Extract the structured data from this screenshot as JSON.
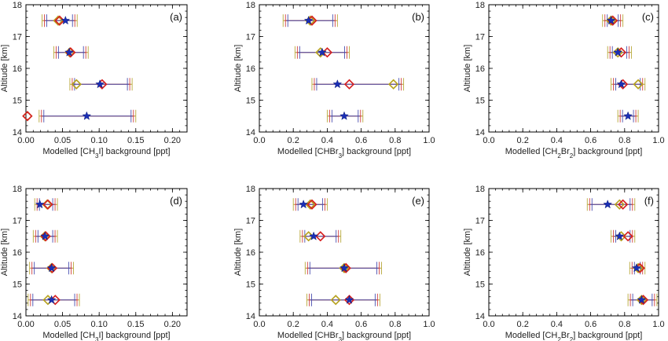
{
  "chart_data": [
    {
      "type": "scatter",
      "panel_label": "(a)",
      "xlabel_prefix": "Modelled [CH",
      "xlabel_sub1": "3",
      "xlabel_mid": "I",
      "xlabel_sub2": "",
      "xlabel_suffix": "] background [ppt]",
      "ylabel": "Altitude  [km]",
      "xlim": [
        0,
        0.22
      ],
      "ylim": [
        14,
        18
      ],
      "xticks": [
        0.0,
        0.05,
        0.1,
        0.15,
        0.2
      ],
      "xtick_labels": [
        "0.00",
        "0.05",
        "0.10",
        "0.15",
        "0.20"
      ],
      "yticks": [
        14,
        15,
        16,
        17,
        18
      ],
      "ytick_labels": [
        "14",
        "15",
        "16",
        "17",
        "18"
      ],
      "points": [
        {
          "y": 17.5,
          "star": 0.054,
          "red": 0.046,
          "olive": 0.044,
          "err": [
            0.022,
            0.07
          ]
        },
        {
          "y": 16.5,
          "star": 0.059,
          "red": 0.061,
          "olive": 0.06,
          "err": [
            0.038,
            0.085
          ]
        },
        {
          "y": 15.5,
          "star": 0.101,
          "red": 0.104,
          "olive": 0.069,
          "err": [
            0.06,
            0.145
          ]
        },
        {
          "y": 14.5,
          "star": 0.083,
          "red": 0.002,
          "olive": 0.002,
          "err": [
            0.018,
            0.15
          ]
        }
      ]
    },
    {
      "type": "scatter",
      "panel_label": "(b)",
      "xlabel_prefix": "Modelled [CHBr",
      "xlabel_sub1": "3",
      "xlabel_mid": "",
      "xlabel_sub2": "",
      "xlabel_suffix": "] background [ppt]",
      "ylabel": "Altitude  [km]",
      "xlim": [
        0,
        1.0
      ],
      "ylim": [
        14,
        18
      ],
      "xticks": [
        0.0,
        0.2,
        0.4,
        0.6,
        0.8,
        1.0
      ],
      "xtick_labels": [
        "0.0",
        "0.2",
        "0.4",
        "0.6",
        "0.8",
        "1.0"
      ],
      "yticks": [
        14,
        15,
        16,
        17,
        18
      ],
      "ytick_labels": [
        "14",
        "15",
        "16",
        "17",
        "18"
      ],
      "points": [
        {
          "y": 17.5,
          "star": 0.29,
          "red": 0.31,
          "olive": 0.3,
          "err": [
            0.14,
            0.46
          ]
        },
        {
          "y": 16.5,
          "star": 0.37,
          "red": 0.4,
          "olive": 0.36,
          "err": [
            0.21,
            0.53
          ]
        },
        {
          "y": 15.5,
          "star": 0.46,
          "red": 0.53,
          "olive": 0.79,
          "err": [
            0.31,
            0.85
          ]
        },
        {
          "y": 14.5,
          "star": 0.5,
          "red": null,
          "olive": null,
          "err": [
            0.4,
            0.61
          ]
        }
      ]
    },
    {
      "type": "scatter",
      "panel_label": "(c)",
      "xlabel_prefix": "Modelled [CH",
      "xlabel_sub1": "2",
      "xlabel_mid": "Br",
      "xlabel_sub2": "2",
      "xlabel_suffix": "] background [ppt]",
      "ylabel": "Altitude  [km]",
      "xlim": [
        0,
        1.0
      ],
      "ylim": [
        14,
        18
      ],
      "xticks": [
        0.0,
        0.2,
        0.4,
        0.6,
        0.8,
        1.0
      ],
      "xtick_labels": [
        "0.0",
        "0.2",
        "0.4",
        "0.6",
        "0.8",
        "1.0"
      ],
      "yticks": [
        14,
        15,
        16,
        17,
        18
      ],
      "ytick_labels": [
        "14",
        "15",
        "16",
        "17",
        "18"
      ],
      "points": [
        {
          "y": 17.5,
          "star": 0.72,
          "red": 0.73,
          "olive": 0.72,
          "err": [
            0.67,
            0.79
          ]
        },
        {
          "y": 16.5,
          "star": 0.76,
          "red": 0.78,
          "olive": 0.76,
          "err": [
            0.7,
            0.84
          ]
        },
        {
          "y": 15.5,
          "star": 0.78,
          "red": 0.79,
          "olive": 0.88,
          "err": [
            0.72,
            0.92
          ]
        },
        {
          "y": 14.5,
          "star": 0.82,
          "red": null,
          "olive": null,
          "err": [
            0.76,
            0.88
          ]
        }
      ]
    },
    {
      "type": "scatter",
      "panel_label": "(d)",
      "xlabel_prefix": "Modelled [CH",
      "xlabel_sub1": "3",
      "xlabel_mid": "I",
      "xlabel_sub2": "",
      "xlabel_suffix": "] background [ppt]",
      "ylabel": "Altitude  [km]",
      "xlim": [
        0,
        0.22
      ],
      "ylim": [
        14,
        18
      ],
      "xticks": [
        0.0,
        0.05,
        0.1,
        0.15,
        0.2
      ],
      "xtick_labels": [
        "0.00",
        "0.05",
        "0.10",
        "0.15",
        "0.20"
      ],
      "yticks": [
        14,
        15,
        16,
        17,
        18
      ],
      "ytick_labels": [
        "14",
        "15",
        "16",
        "17",
        "18"
      ],
      "points": [
        {
          "y": 17.5,
          "star": 0.019,
          "red": 0.03,
          "olive": 0.029,
          "err": [
            0.012,
            0.043
          ]
        },
        {
          "y": 16.5,
          "star": 0.026,
          "red": 0.027,
          "olive": 0.026,
          "err": [
            0.01,
            0.043
          ]
        },
        {
          "y": 15.5,
          "star": 0.035,
          "red": 0.036,
          "olive": 0.035,
          "err": [
            0.005,
            0.065
          ]
        },
        {
          "y": 14.5,
          "star": 0.035,
          "red": 0.04,
          "olive": 0.03,
          "err": [
            0.003,
            0.073
          ]
        }
      ]
    },
    {
      "type": "scatter",
      "panel_label": "(e)",
      "xlabel_prefix": "Modelled [CHBr",
      "xlabel_sub1": "3",
      "xlabel_mid": "",
      "xlabel_sub2": "",
      "xlabel_suffix": "] background [ppt]",
      "ylabel": "Altitude  [km]",
      "xlim": [
        0,
        1.0
      ],
      "ylim": [
        14,
        18
      ],
      "xticks": [
        0.0,
        0.2,
        0.4,
        0.6,
        0.8,
        1.0
      ],
      "xtick_labels": [
        "0.0",
        "0.2",
        "0.4",
        "0.6",
        "0.8",
        "1.0"
      ],
      "yticks": [
        14,
        15,
        16,
        17,
        18
      ],
      "ytick_labels": [
        "14",
        "15",
        "16",
        "17",
        "18"
      ],
      "points": [
        {
          "y": 17.5,
          "star": 0.26,
          "red": 0.31,
          "olive": 0.3,
          "err": [
            0.2,
            0.4
          ]
        },
        {
          "y": 16.5,
          "star": 0.32,
          "red": 0.36,
          "olive": 0.29,
          "err": [
            0.24,
            0.48
          ]
        },
        {
          "y": 15.5,
          "star": 0.5,
          "red": 0.51,
          "olive": 0.5,
          "err": [
            0.27,
            0.72
          ]
        },
        {
          "y": 14.5,
          "star": 0.53,
          "red": 0.53,
          "olive": 0.45,
          "err": [
            0.28,
            0.71
          ]
        }
      ]
    },
    {
      "type": "scatter",
      "panel_label": "(f)",
      "xlabel_prefix": "Modelled [CH",
      "xlabel_sub1": "2",
      "xlabel_mid": "Br",
      "xlabel_sub2": "2",
      "xlabel_suffix": "] background [ppt]",
      "ylabel": "Altitude  [km]",
      "xlim": [
        0,
        1.0
      ],
      "ylim": [
        14,
        18
      ],
      "xticks": [
        0.0,
        0.2,
        0.4,
        0.6,
        0.8,
        1.0
      ],
      "xtick_labels": [
        "0.0",
        "0.2",
        "0.4",
        "0.6",
        "0.8",
        "1.0"
      ],
      "yticks": [
        14,
        15,
        16,
        17,
        18
      ],
      "ytick_labels": [
        "14",
        "15",
        "16",
        "17",
        "18"
      ],
      "points": [
        {
          "y": 17.5,
          "star": 0.7,
          "red": 0.79,
          "olive": 0.77,
          "err": [
            0.58,
            0.86
          ]
        },
        {
          "y": 16.5,
          "star": 0.77,
          "red": 0.82,
          "olive": 0.78,
          "err": [
            0.72,
            0.86
          ]
        },
        {
          "y": 15.5,
          "star": 0.87,
          "red": 0.89,
          "olive": 0.88,
          "err": [
            0.83,
            0.92
          ]
        },
        {
          "y": 14.5,
          "star": 0.9,
          "red": 0.91,
          "olive": 0.9,
          "err": [
            0.82,
            0.99
          ]
        }
      ]
    }
  ],
  "colors": {
    "star": "#1a2fb5",
    "red": "#d62020",
    "olive": "#b7a21f",
    "err_blue": "#4a4fb0",
    "err_red": "#d04040",
    "err_olive": "#b8a83a"
  }
}
